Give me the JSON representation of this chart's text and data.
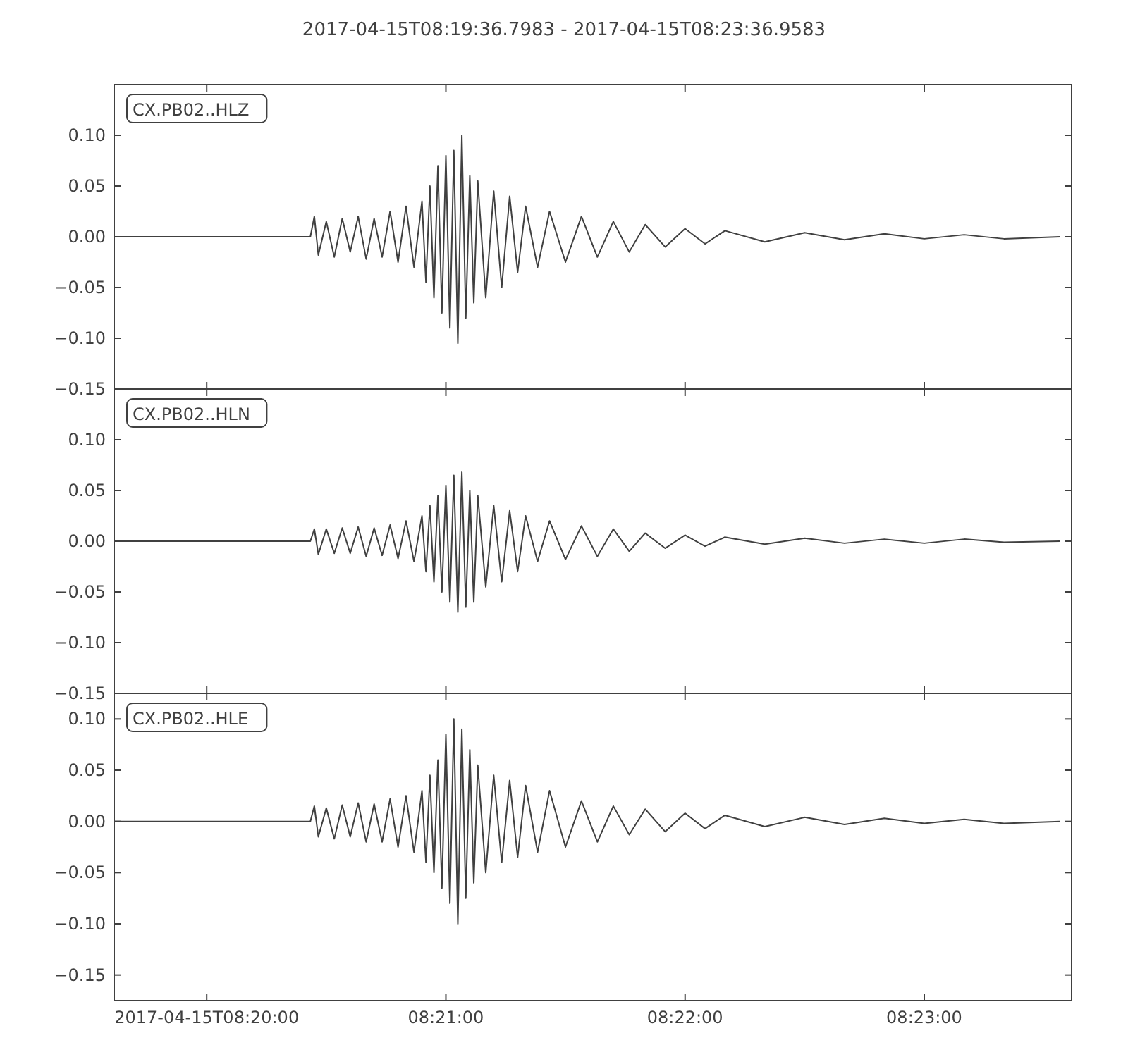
{
  "chart_data": [
    {
      "type": "line",
      "title": "2017-04-15T08:19:36.7983  -  2017-04-15T08:23:36.9583",
      "annotations": [
        "CX.PB02..HLZ"
      ],
      "tick_labels": "y",
      "x": [
        "2017-04-15T08:19:36.8",
        "2017-04-15T08:20:26",
        "2017-04-15T08:20:27",
        "2017-04-15T08:20:28",
        "2017-04-15T08:20:30",
        "2017-04-15T08:20:32",
        "2017-04-15T08:20:34",
        "2017-04-15T08:20:36",
        "2017-04-15T08:20:38",
        "2017-04-15T08:20:40",
        "2017-04-15T08:20:42",
        "2017-04-15T08:20:44",
        "2017-04-15T08:20:46",
        "2017-04-15T08:20:48",
        "2017-04-15T08:20:50",
        "2017-04-15T08:20:52",
        "2017-04-15T08:20:54",
        "2017-04-15T08:20:55",
        "2017-04-15T08:20:56",
        "2017-04-15T08:20:57",
        "2017-04-15T08:20:58",
        "2017-04-15T08:20:59",
        "2017-04-15T08:21:00",
        "2017-04-15T08:21:01",
        "2017-04-15T08:21:02",
        "2017-04-15T08:21:03",
        "2017-04-15T08:21:04",
        "2017-04-15T08:21:05",
        "2017-04-15T08:21:06",
        "2017-04-15T08:21:07",
        "2017-04-15T08:21:08",
        "2017-04-15T08:21:10",
        "2017-04-15T08:21:12",
        "2017-04-15T08:21:14",
        "2017-04-15T08:21:16",
        "2017-04-15T08:21:18",
        "2017-04-15T08:21:20",
        "2017-04-15T08:21:23",
        "2017-04-15T08:21:26",
        "2017-04-15T08:21:30",
        "2017-04-15T08:21:34",
        "2017-04-15T08:21:38",
        "2017-04-15T08:21:42",
        "2017-04-15T08:21:46",
        "2017-04-15T08:21:50",
        "2017-04-15T08:21:55",
        "2017-04-15T08:22:00",
        "2017-04-15T08:22:05",
        "2017-04-15T08:22:10",
        "2017-04-15T08:22:20",
        "2017-04-15T08:22:30",
        "2017-04-15T08:22:40",
        "2017-04-15T08:22:50",
        "2017-04-15T08:23:00",
        "2017-04-15T08:23:10",
        "2017-04-15T08:23:20",
        "2017-04-15T08:23:34"
      ],
      "series": [
        {
          "color": "#404040",
          "values": [
            0,
            0,
            0.02,
            -0.018,
            0.015,
            -0.02,
            0.018,
            -0.015,
            0.02,
            -0.022,
            0.018,
            -0.02,
            0.025,
            -0.025,
            0.03,
            -0.03,
            0.035,
            -0.045,
            0.05,
            -0.06,
            0.07,
            -0.075,
            0.08,
            -0.09,
            0.085,
            -0.105,
            0.1,
            -0.08,
            0.06,
            -0.065,
            0.055,
            -0.06,
            0.045,
            -0.05,
            0.04,
            -0.035,
            0.03,
            -0.03,
            0.025,
            -0.025,
            0.02,
            -0.02,
            0.015,
            -0.015,
            0.012,
            -0.01,
            0.008,
            -0.007,
            0.006,
            -0.005,
            0.004,
            -0.003,
            0.003,
            -0.002,
            0.002,
            -0.002,
            0
          ]
        }
      ],
      "xlim": [
        "2017-04-15T08:19:36.7983",
        "2017-04-15T08:23:36.9583"
      ],
      "xticks": [
        {
          "value": "2017-04-15T08:20:00",
          "label": null
        },
        {
          "value": "2017-04-15T08:21:00",
          "label": null
        },
        {
          "value": "2017-04-15T08:22:00",
          "label": null
        },
        {
          "value": "2017-04-15T08:23:00",
          "label": null
        }
      ],
      "ylim": [
        -0.15,
        0.15
      ],
      "yticks": [
        {
          "value": -0.15,
          "label": "−0.15"
        },
        {
          "value": -0.1,
          "label": "−0.10"
        },
        {
          "value": -0.05,
          "label": "−0.05"
        },
        {
          "value": 0,
          "label": "0.00"
        },
        {
          "value": 0.05,
          "label": "0.05"
        },
        {
          "value": 0.1,
          "label": "0.10"
        }
      ]
    },
    {
      "type": "line",
      "annotations": [
        "CX.PB02..HLN"
      ],
      "tick_labels": "y",
      "x": [
        "2017-04-15T08:19:36.8",
        "2017-04-15T08:20:26",
        "2017-04-15T08:20:27",
        "2017-04-15T08:20:28",
        "2017-04-15T08:20:30",
        "2017-04-15T08:20:32",
        "2017-04-15T08:20:34",
        "2017-04-15T08:20:36",
        "2017-04-15T08:20:38",
        "2017-04-15T08:20:40",
        "2017-04-15T08:20:42",
        "2017-04-15T08:20:44",
        "2017-04-15T08:20:46",
        "2017-04-15T08:20:48",
        "2017-04-15T08:20:50",
        "2017-04-15T08:20:52",
        "2017-04-15T08:20:54",
        "2017-04-15T08:20:55",
        "2017-04-15T08:20:56",
        "2017-04-15T08:20:57",
        "2017-04-15T08:20:58",
        "2017-04-15T08:20:59",
        "2017-04-15T08:21:00",
        "2017-04-15T08:21:01",
        "2017-04-15T08:21:02",
        "2017-04-15T08:21:03",
        "2017-04-15T08:21:04",
        "2017-04-15T08:21:05",
        "2017-04-15T08:21:06",
        "2017-04-15T08:21:07",
        "2017-04-15T08:21:08",
        "2017-04-15T08:21:10",
        "2017-04-15T08:21:12",
        "2017-04-15T08:21:14",
        "2017-04-15T08:21:16",
        "2017-04-15T08:21:18",
        "2017-04-15T08:21:20",
        "2017-04-15T08:21:23",
        "2017-04-15T08:21:26",
        "2017-04-15T08:21:30",
        "2017-04-15T08:21:34",
        "2017-04-15T08:21:38",
        "2017-04-15T08:21:42",
        "2017-04-15T08:21:46",
        "2017-04-15T08:21:50",
        "2017-04-15T08:21:55",
        "2017-04-15T08:22:00",
        "2017-04-15T08:22:05",
        "2017-04-15T08:22:10",
        "2017-04-15T08:22:20",
        "2017-04-15T08:22:30",
        "2017-04-15T08:22:40",
        "2017-04-15T08:22:50",
        "2017-04-15T08:23:00",
        "2017-04-15T08:23:10",
        "2017-04-15T08:23:20",
        "2017-04-15T08:23:34"
      ],
      "series": [
        {
          "color": "#404040",
          "values": [
            0,
            0,
            0.012,
            -0.013,
            0.012,
            -0.012,
            0.013,
            -0.012,
            0.014,
            -0.015,
            0.013,
            -0.014,
            0.016,
            -0.017,
            0.02,
            -0.02,
            0.025,
            -0.03,
            0.035,
            -0.04,
            0.045,
            -0.05,
            0.055,
            -0.06,
            0.065,
            -0.07,
            0.068,
            -0.065,
            0.05,
            -0.06,
            0.045,
            -0.045,
            0.035,
            -0.04,
            0.03,
            -0.03,
            0.025,
            -0.02,
            0.02,
            -0.018,
            0.015,
            -0.015,
            0.012,
            -0.01,
            0.008,
            -0.007,
            0.006,
            -0.005,
            0.004,
            -0.003,
            0.003,
            -0.002,
            0.002,
            -0.002,
            0.002,
            -0.001,
            0
          ]
        }
      ],
      "xlim": [
        "2017-04-15T08:19:36.7983",
        "2017-04-15T08:23:36.9583"
      ],
      "xticks": [
        {
          "value": "2017-04-15T08:20:00",
          "label": null
        },
        {
          "value": "2017-04-15T08:21:00",
          "label": null
        },
        {
          "value": "2017-04-15T08:22:00",
          "label": null
        },
        {
          "value": "2017-04-15T08:23:00",
          "label": null
        }
      ],
      "ylim": [
        -0.15,
        0.15
      ],
      "yticks": [
        {
          "value": -0.15,
          "label": "−0.15"
        },
        {
          "value": -0.1,
          "label": "−0.10"
        },
        {
          "value": -0.05,
          "label": "−0.05"
        },
        {
          "value": 0,
          "label": "0.00"
        },
        {
          "value": 0.05,
          "label": "0.05"
        },
        {
          "value": 0.1,
          "label": "0.10"
        }
      ]
    },
    {
      "type": "line",
      "annotations": [
        "CX.PB02..HLE"
      ],
      "x": [
        "2017-04-15T08:19:36.8",
        "2017-04-15T08:20:26",
        "2017-04-15T08:20:27",
        "2017-04-15T08:20:28",
        "2017-04-15T08:20:30",
        "2017-04-15T08:20:32",
        "2017-04-15T08:20:34",
        "2017-04-15T08:20:36",
        "2017-04-15T08:20:38",
        "2017-04-15T08:20:40",
        "2017-04-15T08:20:42",
        "2017-04-15T08:20:44",
        "2017-04-15T08:20:46",
        "2017-04-15T08:20:48",
        "2017-04-15T08:20:50",
        "2017-04-15T08:20:52",
        "2017-04-15T08:20:54",
        "2017-04-15T08:20:55",
        "2017-04-15T08:20:56",
        "2017-04-15T08:20:57",
        "2017-04-15T08:20:58",
        "2017-04-15T08:20:59",
        "2017-04-15T08:21:00",
        "2017-04-15T08:21:01",
        "2017-04-15T08:21:02",
        "2017-04-15T08:21:03",
        "2017-04-15T08:21:04",
        "2017-04-15T08:21:05",
        "2017-04-15T08:21:06",
        "2017-04-15T08:21:07",
        "2017-04-15T08:21:08",
        "2017-04-15T08:21:10",
        "2017-04-15T08:21:12",
        "2017-04-15T08:21:14",
        "2017-04-15T08:21:16",
        "2017-04-15T08:21:18",
        "2017-04-15T08:21:20",
        "2017-04-15T08:21:23",
        "2017-04-15T08:21:26",
        "2017-04-15T08:21:30",
        "2017-04-15T08:21:34",
        "2017-04-15T08:21:38",
        "2017-04-15T08:21:42",
        "2017-04-15T08:21:46",
        "2017-04-15T08:21:50",
        "2017-04-15T08:21:55",
        "2017-04-15T08:22:00",
        "2017-04-15T08:22:05",
        "2017-04-15T08:22:10",
        "2017-04-15T08:22:20",
        "2017-04-15T08:22:30",
        "2017-04-15T08:22:40",
        "2017-04-15T08:22:50",
        "2017-04-15T08:23:00",
        "2017-04-15T08:23:10",
        "2017-04-15T08:23:20",
        "2017-04-15T08:23:34"
      ],
      "series": [
        {
          "color": "#404040",
          "values": [
            0,
            0,
            0.015,
            -0.015,
            0.013,
            -0.017,
            0.016,
            -0.015,
            0.018,
            -0.02,
            0.017,
            -0.02,
            0.022,
            -0.025,
            0.025,
            -0.03,
            0.03,
            -0.04,
            0.045,
            -0.05,
            0.06,
            -0.065,
            0.085,
            -0.08,
            0.1,
            -0.1,
            0.09,
            -0.075,
            0.07,
            -0.06,
            0.055,
            -0.05,
            0.045,
            -0.04,
            0.04,
            -0.035,
            0.035,
            -0.03,
            0.03,
            -0.025,
            0.02,
            -0.02,
            0.015,
            -0.013,
            0.012,
            -0.01,
            0.008,
            -0.007,
            0.006,
            -0.005,
            0.004,
            -0.003,
            0.003,
            -0.002,
            0.002,
            -0.002,
            0
          ]
        }
      ],
      "xlim": [
        "2017-04-15T08:19:36.7983",
        "2017-04-15T08:23:36.9583"
      ],
      "xticks": [
        {
          "value": "2017-04-15T08:20:00",
          "label": "2017-04-15T08:20:00"
        },
        {
          "value": "2017-04-15T08:21:00",
          "label": "08:21:00"
        },
        {
          "value": "2017-04-15T08:22:00",
          "label": "08:22:00"
        },
        {
          "value": "2017-04-15T08:23:00",
          "label": "08:23:00"
        }
      ],
      "ylim": [
        -0.175,
        0.125
      ],
      "yticks": [
        {
          "value": -0.15,
          "label": "−0.15"
        },
        {
          "value": -0.1,
          "label": "−0.10"
        },
        {
          "value": -0.05,
          "label": "−0.05"
        },
        {
          "value": 0,
          "label": "0.00"
        },
        {
          "value": 0.05,
          "label": "0.05"
        },
        {
          "value": 0.1,
          "label": "0.10"
        }
      ]
    }
  ]
}
